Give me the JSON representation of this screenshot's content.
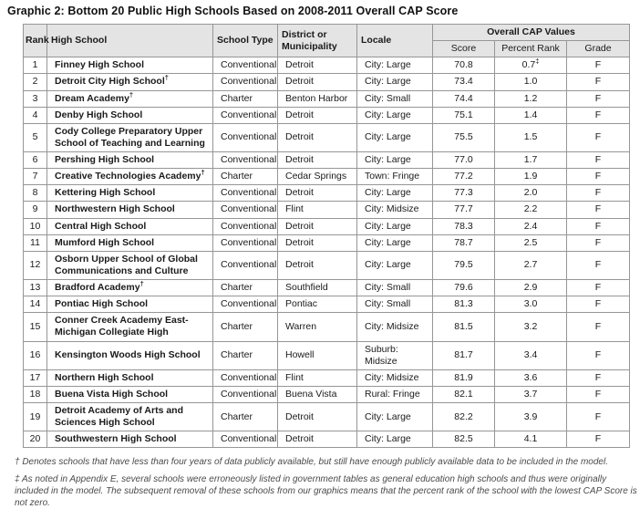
{
  "title": "Graphic 2: Bottom 20 Public High Schools Based on 2008-2011 Overall CAP Score",
  "colors": {
    "header_background": "#e4e4e4",
    "table_border": "#969696",
    "body_text": "#1a1a1a",
    "footnote_text": "#4a4a4a"
  },
  "table": {
    "headers": {
      "rank": "Rank",
      "school": "High School",
      "type": "School Type",
      "district": "District or Municipality",
      "locale": "Locale",
      "cap_group": "Overall CAP Values",
      "score": "Score",
      "percent_rank": "Percent Rank",
      "grade": "Grade"
    },
    "rows": [
      {
        "rank": "1",
        "school": "Finney High School",
        "school_marker": "",
        "type": "Conventional",
        "district": "Detroit",
        "locale": "City: Large",
        "score": "70.8",
        "pr": "0.7",
        "pr_marker": "‡",
        "grade": "F"
      },
      {
        "rank": "2",
        "school": "Detroit City High School",
        "school_marker": "†",
        "type": "Conventional",
        "district": "Detroit",
        "locale": "City: Large",
        "score": "73.4",
        "pr": "1.0",
        "pr_marker": "",
        "grade": "F"
      },
      {
        "rank": "3",
        "school": "Dream Academy",
        "school_marker": "†",
        "type": "Charter",
        "district": "Benton Harbor",
        "locale": "City: Small",
        "score": "74.4",
        "pr": "1.2",
        "pr_marker": "",
        "grade": "F"
      },
      {
        "rank": "4",
        "school": "Denby High School",
        "school_marker": "",
        "type": "Conventional",
        "district": "Detroit",
        "locale": "City: Large",
        "score": "75.1",
        "pr": "1.4",
        "pr_marker": "",
        "grade": "F"
      },
      {
        "rank": "5",
        "school": "Cody College Preparatory Upper School of Teaching and Learning",
        "school_marker": "",
        "type": "Conventional",
        "district": "Detroit",
        "locale": "City: Large",
        "score": "75.5",
        "pr": "1.5",
        "pr_marker": "",
        "grade": "F"
      },
      {
        "rank": "6",
        "school": "Pershing High School",
        "school_marker": "",
        "type": "Conventional",
        "district": "Detroit",
        "locale": "City: Large",
        "score": "77.0",
        "pr": "1.7",
        "pr_marker": "",
        "grade": "F"
      },
      {
        "rank": "7",
        "school": "Creative Technologies Academy",
        "school_marker": "†",
        "type": "Charter",
        "district": "Cedar Springs",
        "locale": "Town: Fringe",
        "score": "77.2",
        "pr": "1.9",
        "pr_marker": "",
        "grade": "F"
      },
      {
        "rank": "8",
        "school": "Kettering High School",
        "school_marker": "",
        "type": "Conventional",
        "district": "Detroit",
        "locale": "City: Large",
        "score": "77.3",
        "pr": "2.0",
        "pr_marker": "",
        "grade": "F"
      },
      {
        "rank": "9",
        "school": "Northwestern High School",
        "school_marker": "",
        "type": "Conventional",
        "district": "Flint",
        "locale": "City: Midsize",
        "score": "77.7",
        "pr": "2.2",
        "pr_marker": "",
        "grade": "F"
      },
      {
        "rank": "10",
        "school": "Central High School",
        "school_marker": "",
        "type": "Conventional",
        "district": "Detroit",
        "locale": "City: Large",
        "score": "78.3",
        "pr": "2.4",
        "pr_marker": "",
        "grade": "F"
      },
      {
        "rank": "11",
        "school": "Mumford High School",
        "school_marker": "",
        "type": "Conventional",
        "district": "Detroit",
        "locale": "City: Large",
        "score": "78.7",
        "pr": "2.5",
        "pr_marker": "",
        "grade": "F"
      },
      {
        "rank": "12",
        "school": "Osborn Upper School of Global Communications and Culture",
        "school_marker": "",
        "type": "Conventional",
        "district": "Detroit",
        "locale": "City: Large",
        "score": "79.5",
        "pr": "2.7",
        "pr_marker": "",
        "grade": "F"
      },
      {
        "rank": "13",
        "school": "Bradford Academy",
        "school_marker": "†",
        "type": "Charter",
        "district": "Southfield",
        "locale": "City: Small",
        "score": "79.6",
        "pr": "2.9",
        "pr_marker": "",
        "grade": "F"
      },
      {
        "rank": "14",
        "school": "Pontiac High School",
        "school_marker": "",
        "type": "Conventional",
        "district": "Pontiac",
        "locale": "City: Small",
        "score": "81.3",
        "pr": "3.0",
        "pr_marker": "",
        "grade": "F"
      },
      {
        "rank": "15",
        "school": "Conner Creek Academy East-Michigan Collegiate High",
        "school_marker": "",
        "type": "Charter",
        "district": "Warren",
        "locale": "City: Midsize",
        "score": "81.5",
        "pr": "3.2",
        "pr_marker": "",
        "grade": "F"
      },
      {
        "rank": "16",
        "school": "Kensington Woods High School",
        "school_marker": "",
        "type": "Charter",
        "district": "Howell",
        "locale": "Suburb: Midsize",
        "score": "81.7",
        "pr": "3.4",
        "pr_marker": "",
        "grade": "F"
      },
      {
        "rank": "17",
        "school": "Northern High School",
        "school_marker": "",
        "type": "Conventional",
        "district": "Flint",
        "locale": "City: Midsize",
        "score": "81.9",
        "pr": "3.6",
        "pr_marker": "",
        "grade": "F"
      },
      {
        "rank": "18",
        "school": "Buena Vista High School",
        "school_marker": "",
        "type": "Conventional",
        "district": "Buena Vista",
        "locale": "Rural: Fringe",
        "score": "82.1",
        "pr": "3.7",
        "pr_marker": "",
        "grade": "F"
      },
      {
        "rank": "19",
        "school": "Detroit Academy of Arts and Sciences High School",
        "school_marker": "",
        "type": "Charter",
        "district": "Detroit",
        "locale": "City: Large",
        "score": "82.2",
        "pr": "3.9",
        "pr_marker": "",
        "grade": "F"
      },
      {
        "rank": "20",
        "school": "Southwestern High School",
        "school_marker": "",
        "type": "Conventional",
        "district": "Detroit",
        "locale": "City: Large",
        "score": "82.5",
        "pr": "4.1",
        "pr_marker": "",
        "grade": "F"
      }
    ]
  },
  "footnotes": [
    "† Denotes schools that have less than four years of data publicly available, but still have enough publicly available data to be included in the model.",
    "‡ As noted in Appendix E, several schools were erroneously listed in government tables as general education high schools and thus were originally included in the model. The subsequent removal of these schools from our graphics means that the percent rank of the school with the lowest CAP Score is not zero."
  ]
}
